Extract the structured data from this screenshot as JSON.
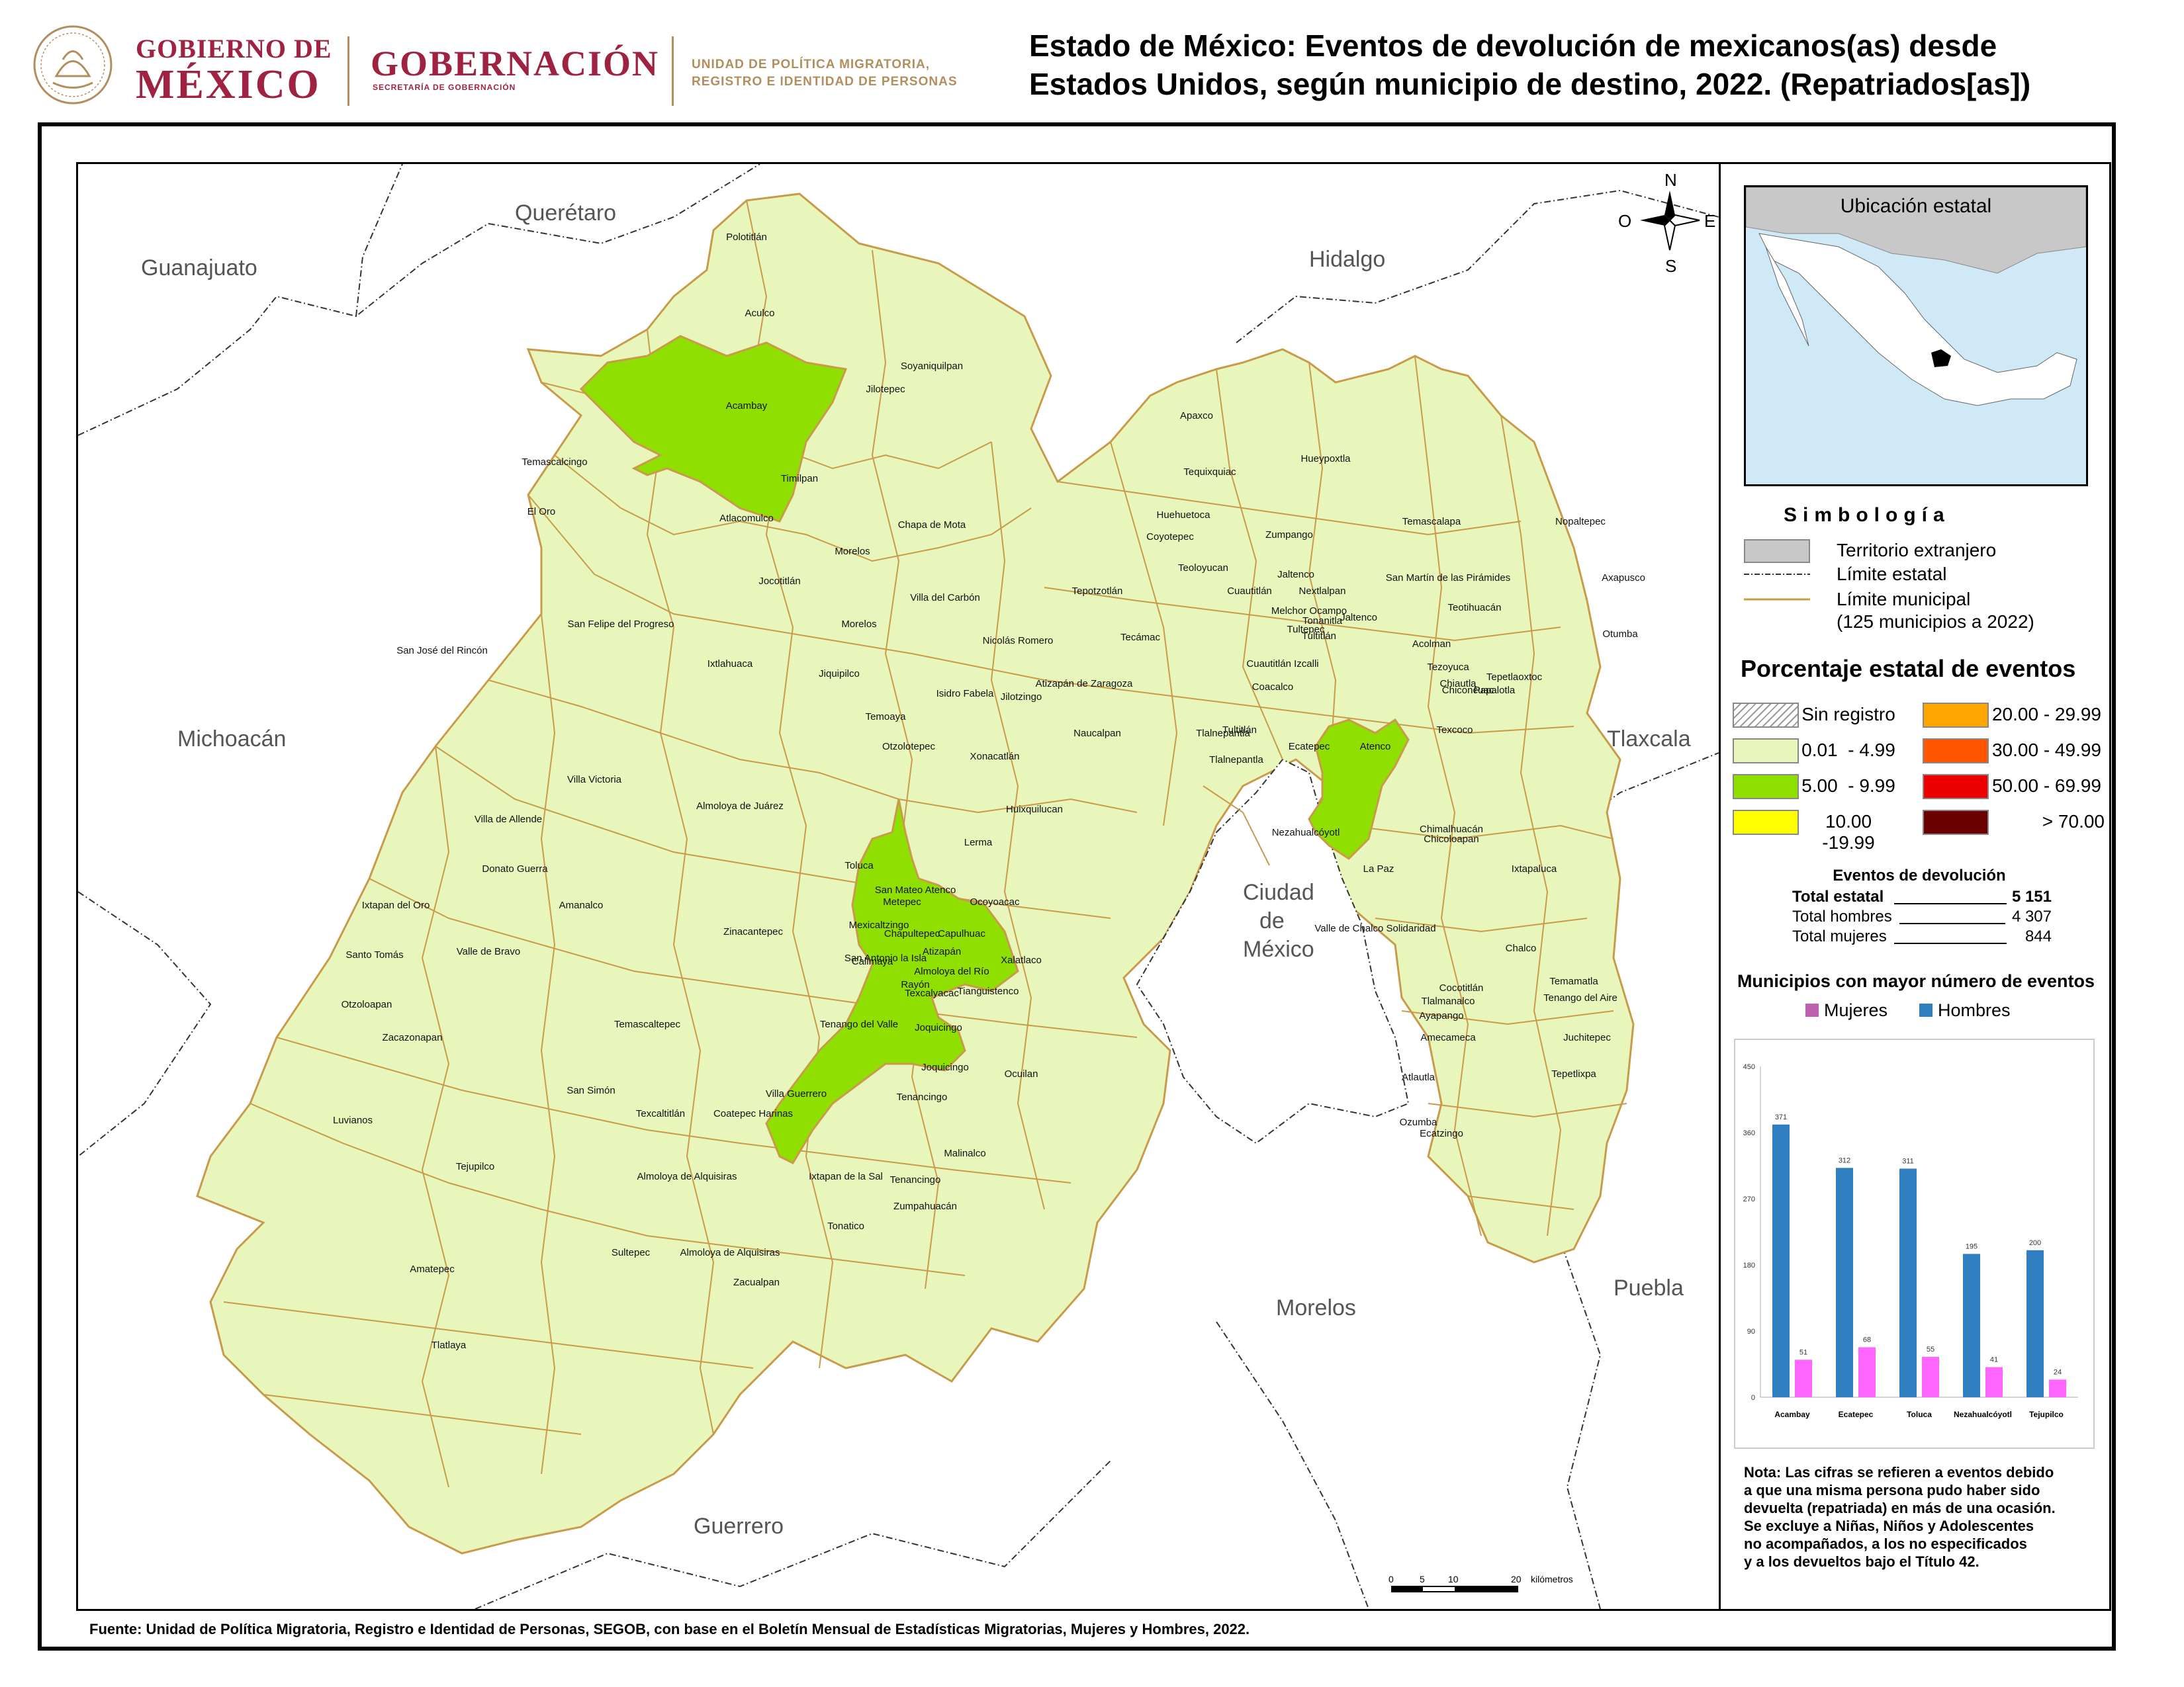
{
  "header": {
    "gobierno_line1": "GOBIERNO DE",
    "gobierno_line2": "MÉXICO",
    "gobernacion": "GOBERNACIÓN",
    "gobernacion_sub": "SECRETARÍA DE GOBERNACIÓN",
    "unit_line1": "UNIDAD DE POLÍTICA MIGRATORIA,",
    "unit_line2": "REGISTRO E IDENTIDAD DE PERSONAS",
    "title_line1": "Estado de México: Eventos de devolución de mexicanos(as) desde",
    "title_line2": "Estados Unidos, según municipio de destino, 2022. (Repatriados[as])"
  },
  "map": {
    "compass": {
      "n": "N",
      "s": "S",
      "e": "E",
      "o": "O"
    },
    "neighbors": [
      "Querétaro",
      "Guanajuato",
      "Hidalgo",
      "Michoacán",
      "Tlaxcala",
      "Ciudad",
      "de",
      "México",
      "Puebla",
      "Morelos",
      "Guerrero"
    ],
    "highlighted_municipalities": [
      "Acambay",
      "Toluca",
      "Ecatepec"
    ],
    "municipalities": [
      "Polotitlán",
      "Aculco",
      "Soyaniquilpan",
      "Jilotepec",
      "Acambay",
      "Temascalcingo",
      "Timilpan",
      "El Oro",
      "Atlacomulco",
      "Chapa de Mota",
      "Morelos",
      "Jocotitlán",
      "Villa del Carbón",
      "San Felipe del Progreso",
      "San José del Rincón",
      "Ixtlahuaca",
      "Morelos",
      "Jiquipilco",
      "Nicolás Romero",
      "Isidro Fabela",
      "Atizapán de Zaragoza",
      "Temoaya",
      "Jilotzingo",
      "Otzolotepec",
      "Naucalpan",
      "Xonacatlán",
      "Villa Victoria",
      "Almoloya de Juárez",
      "Huixquilucan",
      "Villa de Allende",
      "Lerma",
      "Toluca",
      "Donato Guerra",
      "San Mateo Atenco",
      "Metepec",
      "Ocoyoacac",
      "Amanalco",
      "Ixtapan del Oro",
      "Mexicaltzingo",
      "Chapultepec",
      "Capulhuac",
      "Zinacantepec",
      "Santo Tomás",
      "Valle de Bravo",
      "Calimaya",
      "San Antonio la Isla",
      "Atizapán",
      "Almoloya del Río",
      "Xalatlaco",
      "Rayón",
      "Texcalyacac",
      "Tianguistenco",
      "Otzoloapan",
      "Zacazonapan",
      "Temascaltepec",
      "Tenango del Valle",
      "Joquicingo",
      "Joquicingo",
      "Ocuilan",
      "San Simón",
      "Luvianos",
      "Villa Guerrero",
      "Tenancingo",
      "Texcaltitlán",
      "Coatepec Harinas",
      "Malinalco",
      "Tejupilco",
      "Almoloya de Alquisiras",
      "Ixtapan de la Sal",
      "Tenancingo",
      "Zumpahuacán",
      "Tonatico",
      "Amatepec",
      "Sultepec",
      "Almoloya de Alquisiras",
      "Zacualpan",
      "Tlatlaya",
      "Apaxco",
      "Hueypoxtla",
      "Tequixquiac",
      "Huehuetoca",
      "Coyotepec",
      "Zumpango",
      "Teoloyucan",
      "Jaltenco",
      "Tepotzotlán",
      "Cuautitlán",
      "Nextlalpan",
      "Melchor Ocampo",
      "Tonanitla",
      "Tultepec",
      "Tultitlán",
      "Jaltenco",
      "Tecámac",
      "Cuautitlán Izcalli",
      "Coacalco",
      "Tultitlán",
      "Tlalnepantla",
      "Ecatepec",
      "Tlalnepantla",
      "Temascalapa",
      "Nopaltepec",
      "Axapusco",
      "San Martín de las Pirámides",
      "Teotihuacán",
      "Otumba",
      "Acolman",
      "Tezoyuca",
      "Chiautla",
      "Chiconcuac",
      "Papalotla",
      "Tepetlaoxtoc",
      "Atenco",
      "Texcoco",
      "Nezahualcóyotl",
      "Chimalhuacán",
      "Chicoloapan",
      "La Paz",
      "Ixtapaluca",
      "Valle de Chalco Solidaridad",
      "Chalco",
      "Cocotitlán",
      "Temamatla",
      "Tlalmanalco",
      "Tenango del Aire",
      "Ayapango",
      "Amecameca",
      "Juchitepec",
      "Atlautla",
      "Tepetlixpa",
      "Ozumba",
      "Ecatzingo"
    ],
    "scale_labels": [
      "0",
      "5",
      "10",
      "20",
      "kilómetros"
    ],
    "colors": {
      "base": "#e8f5bb",
      "highlight": "#8fe000",
      "border": "#c89b4a",
      "ocean": "#cfe9f6",
      "foreign": "#cccccc"
    }
  },
  "legend": {
    "inset_title": "Ubicación estatal",
    "simbologia": "Simbología",
    "items": [
      {
        "label": "Territorio extranjero",
        "color": "#c8c8c8"
      },
      {
        "label": "Límite estatal"
      },
      {
        "label": "Límite municipal"
      },
      {
        "label": "(125 municipios a 2022)"
      }
    ],
    "pct_title": "Porcentaje estatal de eventos",
    "ranges_left": [
      {
        "label": "Sin registro",
        "color": "hatch"
      },
      {
        "label": "0.01  - 4.99",
        "color": "#e8f5bb"
      },
      {
        "label": "5.00  - 9.99",
        "color": "#8fe000"
      },
      {
        "label": "10.00 -19.99",
        "color": "#ffff00"
      }
    ],
    "ranges_right": [
      {
        "label": "20.00 - 29.99",
        "color": "#ffa500"
      },
      {
        "label": "30.00 - 49.99",
        "color": "#ff5500"
      },
      {
        "label": "50.00 - 69.99",
        "color": "#ee0000"
      },
      {
        "label": "> 70.00",
        "color": "#6b0000"
      }
    ],
    "eventos_title": "Eventos de devolución",
    "totals": [
      {
        "label": "Total estatal",
        "value": "5 151"
      },
      {
        "label": "Total hombres",
        "value": "4 307"
      },
      {
        "label": "Total mujeres",
        "value": "844"
      }
    ],
    "muni_title": "Municipios con mayor número de eventos",
    "series_legend": [
      {
        "label": "Mujeres",
        "color": "#c060b0"
      },
      {
        "label": "Hombres",
        "color": "#2f7fc0"
      }
    ],
    "nota": [
      "Nota: Las cifras se refieren a eventos debido",
      "a que una misma persona pudo haber sido",
      "devuelta (repatriada) en más de una ocasión.",
      "Se excluye a Niñas, Niños y Adolescentes",
      "no acompañados, a los no especificados",
      "y a los devueltos bajo el Título 42."
    ]
  },
  "chart_data": {
    "type": "bar",
    "categories": [
      "Acambay",
      "Ecatepec",
      "Toluca",
      "Nezahualcóyotl",
      "Tejupilco"
    ],
    "series": [
      {
        "name": "Hombres",
        "values": [
          371,
          312,
          311,
          195,
          200
        ],
        "color": "#2f7fc0"
      },
      {
        "name": "Mujeres",
        "values": [
          51,
          68,
          55,
          41,
          24
        ],
        "color": "#ff66ff"
      }
    ],
    "yticks": [
      0,
      90,
      180,
      270,
      360,
      450
    ],
    "ylim": [
      0,
      450
    ],
    "grid": false,
    "legend": "top"
  },
  "footer": {
    "fuente": "Fuente: Unidad de Política Migratoria, Registro e Identidad de Personas, SEGOB, con base en el Boletín Mensual de Estadísticas Migratorias, Mujeres y Hombres, 2022."
  }
}
